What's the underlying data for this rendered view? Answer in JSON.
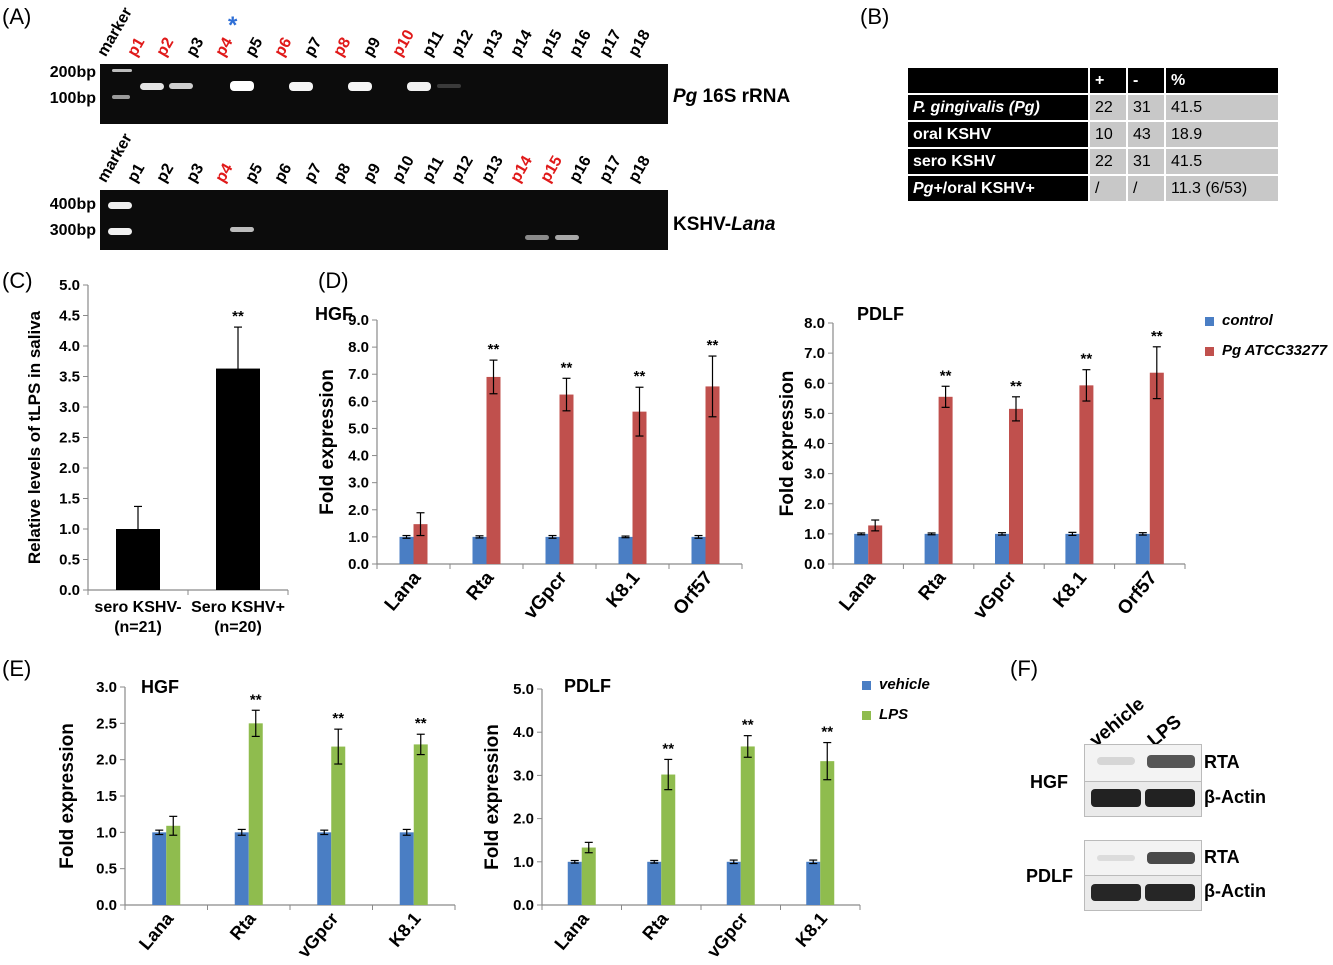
{
  "panels": {
    "A": "(A)",
    "B": "(B)",
    "C": "(C)",
    "D": "(D)",
    "E": "(E)",
    "F": "(F)"
  },
  "gel_top": {
    "lanes": [
      "marker",
      "p1",
      "p2",
      "p3",
      "p4",
      "p5",
      "p6",
      "p7",
      "p8",
      "p9",
      "p10",
      "p11",
      "p12",
      "p13",
      "p14",
      "p15",
      "p16",
      "p17",
      "p18"
    ],
    "red": [
      1,
      2,
      4,
      6,
      8,
      10
    ],
    "star": "*",
    "bp": [
      "200bp",
      "100bp"
    ],
    "gene_italic": "Pg",
    "gene_rest": " 16S rRNA"
  },
  "gel_bottom": {
    "lanes": [
      "marker",
      "p1",
      "p2",
      "p3",
      "p4",
      "p5",
      "p6",
      "p7",
      "p8",
      "p9",
      "p10",
      "p11",
      "p12",
      "p13",
      "p14",
      "p15",
      "p16",
      "p17",
      "p18"
    ],
    "red": [
      4,
      14,
      15
    ],
    "bp": [
      "400bp",
      "300bp"
    ],
    "gene_plain": "KSHV-",
    "gene_italic": "Lana"
  },
  "table": {
    "header": [
      "",
      "+",
      "-",
      "%"
    ],
    "rows": [
      {
        "label": "P. gingivalis (Pg)",
        "vals": [
          "22",
          "31",
          "41.5"
        ]
      },
      {
        "label": "oral KSHV",
        "vals": [
          "10",
          "43",
          "18.9"
        ]
      },
      {
        "label": "sero KSHV",
        "vals": [
          "22",
          "31",
          "41.5"
        ]
      },
      {
        "label_italic": "Pg",
        "label_rest": "+/oral KSHV+",
        "vals": [
          "/",
          "/",
          "11.3 (6/53)"
        ]
      }
    ]
  },
  "chart_data": [
    {
      "id": "C",
      "type": "bar",
      "ylabel": "Relative levels of tLPS in saliva",
      "ylim": [
        0,
        5
      ],
      "yticks": [
        "0.0",
        "0.5",
        "1.0",
        "1.5",
        "2.0",
        "2.5",
        "3.0",
        "3.5",
        "4.0",
        "4.5",
        "5.0"
      ],
      "categories": [
        [
          "sero KSHV-",
          "(n=21)"
        ],
        [
          "Sero KSHV+",
          "(n=20)"
        ]
      ],
      "values": [
        1.0,
        3.63
      ],
      "errors": [
        0.37,
        0.68
      ],
      "sig": [
        "",
        "**"
      ],
      "color": "#000000"
    },
    {
      "id": "D1",
      "type": "bar",
      "title": "HGF",
      "ylabel": "Fold expression",
      "ylim": [
        0,
        9
      ],
      "yticks": [
        "0.0",
        "1.0",
        "2.0",
        "3.0",
        "4.0",
        "5.0",
        "6.0",
        "7.0",
        "8.0",
        "9.0"
      ],
      "categories": [
        "Lana",
        "Rta",
        "vGpcr",
        "K8.1",
        "Orf57"
      ],
      "series": [
        {
          "values": [
            1.0,
            1.0,
            1.0,
            1.0,
            1.0
          ],
          "errors": [
            0.05,
            0.04,
            0.05,
            0.03,
            0.05
          ],
          "color": "#4a7ec4"
        },
        {
          "values": [
            1.47,
            6.9,
            6.25,
            5.62,
            6.55
          ],
          "errors": [
            0.42,
            0.62,
            0.6,
            0.9,
            1.12
          ],
          "color": "#c0504d"
        }
      ],
      "sig": [
        "",
        "**",
        "**",
        "**",
        "**"
      ]
    },
    {
      "id": "D2",
      "type": "bar",
      "title": "PDLF",
      "ylabel": "Fold expression",
      "ylim": [
        0,
        8
      ],
      "yticks": [
        "0.0",
        "1.0",
        "2.0",
        "3.0",
        "4.0",
        "5.0",
        "6.0",
        "7.0",
        "8.0"
      ],
      "categories": [
        "Lana",
        "Rta",
        "vGpcr",
        "K8.1",
        "Orf57"
      ],
      "series": [
        {
          "values": [
            1.0,
            1.0,
            1.0,
            1.0,
            1.0
          ],
          "errors": [
            0.03,
            0.03,
            0.04,
            0.05,
            0.04
          ],
          "color": "#4a7ec4"
        },
        {
          "values": [
            1.28,
            5.55,
            5.15,
            5.93,
            6.35
          ],
          "errors": [
            0.18,
            0.35,
            0.4,
            0.52,
            0.86
          ],
          "color": "#c0504d"
        }
      ],
      "sig": [
        "",
        "**",
        "**",
        "**",
        "**"
      ]
    },
    {
      "id": "E1",
      "type": "bar",
      "title": "HGF",
      "ylabel": "Fold expression",
      "ylim": [
        0,
        3
      ],
      "yticks": [
        "0.0",
        "0.5",
        "1.0",
        "1.5",
        "2.0",
        "2.5",
        "3.0"
      ],
      "categories": [
        "Lana",
        "Rta",
        "vGpcr",
        "K8.1"
      ],
      "series": [
        {
          "values": [
            1.0,
            1.0,
            1.0,
            1.0
          ],
          "errors": [
            0.03,
            0.04,
            0.03,
            0.04
          ],
          "color": "#4a7ec4"
        },
        {
          "values": [
            1.09,
            2.5,
            2.18,
            2.21
          ],
          "errors": [
            0.13,
            0.18,
            0.24,
            0.14
          ],
          "color": "#8fbc4e"
        }
      ],
      "sig": [
        "",
        "**",
        "**",
        "**"
      ]
    },
    {
      "id": "E2",
      "type": "bar",
      "title": "PDLF",
      "ylabel": "Fold expression",
      "ylim": [
        0,
        5
      ],
      "yticks": [
        "0.0",
        "1.0",
        "2.0",
        "3.0",
        "4.0",
        "5.0"
      ],
      "categories": [
        "Lana",
        "Rta",
        "vGpcr",
        "K8.1"
      ],
      "series": [
        {
          "values": [
            1.0,
            1.0,
            1.0,
            1.0
          ],
          "errors": [
            0.03,
            0.03,
            0.04,
            0.04
          ],
          "color": "#4a7ec4"
        },
        {
          "values": [
            1.33,
            3.02,
            3.67,
            3.33
          ],
          "errors": [
            0.12,
            0.35,
            0.25,
            0.43
          ],
          "color": "#8fbc4e"
        }
      ],
      "sig": [
        "",
        "**",
        "**",
        "**"
      ]
    }
  ],
  "legend_D": {
    "items": [
      {
        "text": "control",
        "color": "#4a7ec4"
      },
      {
        "text": "Pg ATCC33277",
        "color": "#c0504d"
      }
    ]
  },
  "legend_E": {
    "items": [
      {
        "text": "vehicle",
        "color": "#4a7ec4"
      },
      {
        "text": "LPS",
        "color": "#8fbc4e"
      }
    ]
  },
  "western": {
    "cols": [
      "vehicle",
      "LPS"
    ],
    "groups": [
      "HGF",
      "PDLF"
    ],
    "bands": [
      "RTA",
      "β-Actin"
    ]
  }
}
